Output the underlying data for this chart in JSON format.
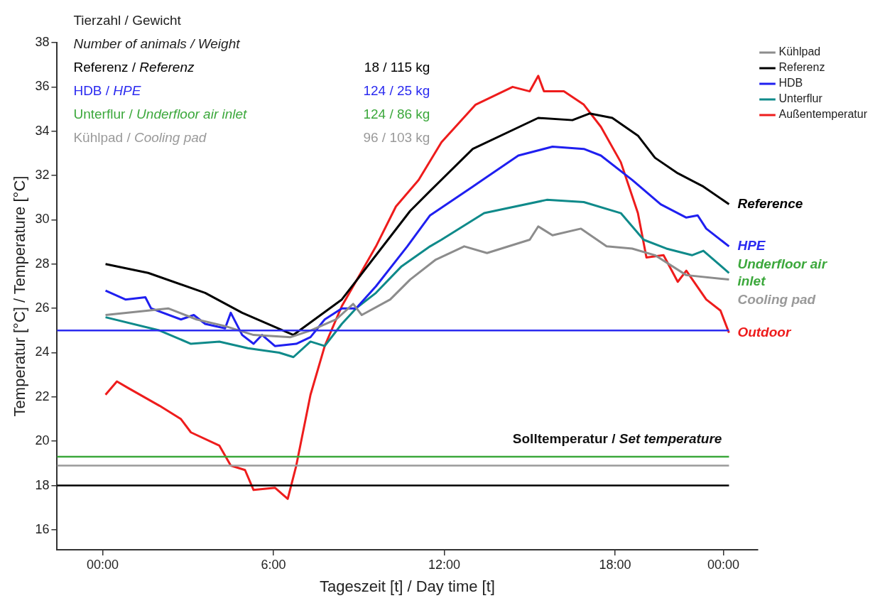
{
  "chart_data": {
    "type": "line",
    "xlabel": "Tageszeit [t] / Day time [t]",
    "ylabel": "Temperatur [°C] / Temperature [°C]",
    "xlim": [
      -1.6,
      23
    ],
    "ylim": [
      15.1,
      38
    ],
    "xticks": [
      {
        "value": 0,
        "label": "00:00"
      },
      {
        "value": 6,
        "label": "6:00"
      },
      {
        "value": 12,
        "label": "12:00"
      },
      {
        "value": 18,
        "label": "18:00"
      },
      {
        "value": 21.8,
        "label": "00:00"
      }
    ],
    "yticks": [
      16,
      18,
      20,
      22,
      24,
      26,
      28,
      30,
      32,
      34,
      36,
      38
    ],
    "grid": false,
    "legend": "top right",
    "series": [
      {
        "name": "Kühlpad",
        "color": "#8c8c8c",
        "x": [
          0.1,
          1.6,
          2.3,
          3.3,
          4.3,
          5.3,
          6.6,
          7.3,
          8.2,
          8.8,
          9.1,
          10.1,
          10.8,
          11.7,
          12.7,
          13.5,
          15.0,
          15.3,
          15.8,
          16.8,
          17.7,
          18.6,
          19.4,
          20.5,
          22.0
        ],
        "values": [
          25.7,
          25.9,
          26.0,
          25.5,
          25.2,
          24.8,
          24.7,
          25.0,
          25.5,
          26.2,
          25.7,
          26.4,
          27.3,
          28.2,
          28.8,
          28.5,
          29.1,
          29.7,
          29.3,
          29.6,
          28.8,
          28.7,
          28.4,
          27.5,
          27.3
        ]
      },
      {
        "name": "Referenz",
        "color": "#000000",
        "x": [
          0.1,
          1.6,
          3.6,
          4.9,
          6.7,
          8.4,
          10.8,
          11.5,
          13.0,
          15.3,
          16.5,
          17.1,
          17.9,
          18.8,
          19.4,
          20.2,
          21.1,
          22.0
        ],
        "values": [
          28.0,
          27.6,
          26.7,
          25.8,
          24.8,
          26.4,
          30.4,
          31.3,
          33.2,
          34.6,
          34.5,
          34.8,
          34.6,
          33.8,
          32.8,
          32.1,
          31.5,
          30.7
        ]
      },
      {
        "name": "HDB",
        "color": "#1f1ff0",
        "x": [
          0.1,
          0.8,
          1.5,
          1.7,
          2.75,
          3.2,
          3.6,
          4.3,
          4.5,
          4.9,
          5.3,
          5.6,
          6.05,
          6.8,
          7.3,
          7.8,
          8.4,
          8.9,
          9.6,
          10.7,
          11.5,
          13.0,
          14.6,
          15.8,
          16.9,
          17.5,
          18.6,
          19.6,
          20.5,
          20.9,
          21.2,
          22.0
        ],
        "values": [
          26.8,
          26.4,
          26.5,
          26.0,
          25.5,
          25.7,
          25.3,
          25.1,
          25.8,
          24.8,
          24.4,
          24.8,
          24.3,
          24.4,
          24.7,
          25.5,
          26.0,
          26.0,
          27.0,
          28.8,
          30.2,
          31.5,
          32.9,
          33.3,
          33.2,
          32.9,
          31.8,
          30.7,
          30.1,
          30.2,
          29.6,
          28.8
        ]
      },
      {
        "name": "Unterflur",
        "color": "#0f8a8a",
        "x": [
          0.1,
          2.0,
          3.1,
          4.1,
          5.1,
          6.2,
          6.7,
          7.3,
          7.8,
          8.4,
          8.9,
          9.6,
          10.5,
          11.5,
          11.9,
          13.4,
          15.6,
          16.9,
          18.2,
          19.0,
          19.8,
          20.7,
          21.1,
          22.0
        ],
        "values": [
          25.6,
          25.0,
          24.4,
          24.5,
          24.2,
          24.0,
          23.8,
          24.5,
          24.3,
          25.3,
          26.0,
          26.7,
          27.9,
          28.8,
          29.1,
          30.3,
          30.9,
          30.8,
          30.3,
          29.1,
          28.7,
          28.4,
          28.6,
          27.6
        ]
      },
      {
        "name": "Außentemperatur",
        "color": "#ee1c1c",
        "x": [
          0.1,
          0.5,
          0.9,
          2.0,
          2.75,
          3.1,
          4.1,
          4.5,
          5.0,
          5.3,
          6.05,
          6.5,
          6.8,
          7.3,
          7.8,
          8.4,
          9.6,
          10.3,
          11.1,
          11.9,
          13.1,
          14.4,
          15.0,
          15.3,
          15.5,
          16.2,
          16.9,
          17.5,
          18.2,
          18.8,
          19.1,
          19.7,
          20.2,
          20.5,
          21.2,
          21.7,
          22.0
        ],
        "values": [
          22.1,
          22.7,
          22.4,
          21.6,
          21.0,
          20.4,
          19.8,
          18.9,
          18.7,
          17.8,
          17.9,
          17.4,
          18.9,
          22.1,
          24.3,
          26.1,
          28.8,
          30.6,
          31.8,
          33.5,
          35.2,
          36.0,
          35.8,
          36.5,
          35.8,
          35.8,
          35.2,
          34.2,
          32.6,
          30.3,
          28.3,
          28.4,
          27.2,
          27.7,
          26.4,
          25.9,
          24.9
        ]
      }
    ],
    "ref_lines": [
      {
        "axis": "y",
        "value": 18,
        "color": "#000000"
      },
      {
        "axis": "y",
        "value": 25,
        "color": "#2b2bf0"
      },
      {
        "axis": "y",
        "value": 19.3,
        "color": "#3ca83c"
      },
      {
        "axis": "y",
        "value": 18.9,
        "color": "#9a9a9a"
      }
    ],
    "annotations": [
      "Tierzahl / Gewicht",
      "Number of animals / Weight",
      "Referenz / Referenz",
      "18 / 115 kg",
      "HDB / HPE",
      "124 / 25 kg",
      "Unterflur / Underfloor air inlet",
      "124 / 86 kg",
      "Kühlpad / Cooling pad",
      "96 / 103 kg",
      "Solltemperatur / Set temperature",
      "Reference",
      "HPE",
      "Underfloor air inlet",
      "Cooling pad",
      "Outdoor"
    ]
  }
}
